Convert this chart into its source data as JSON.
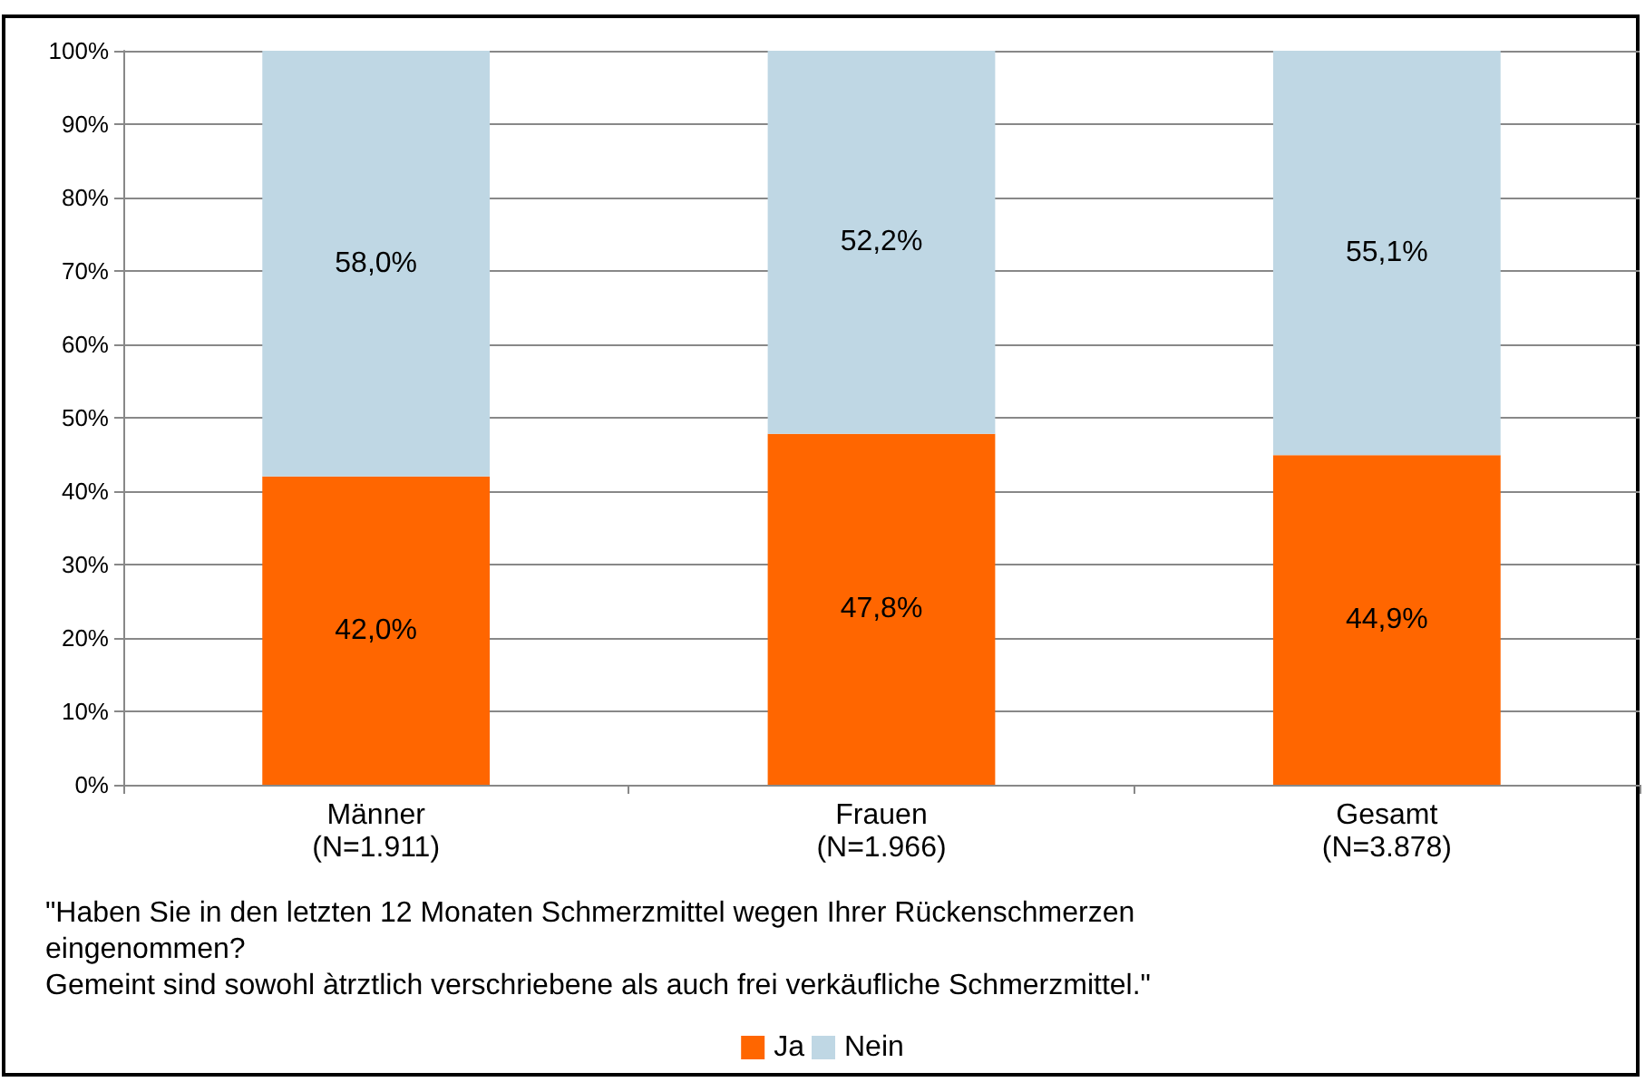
{
  "chart_data": {
    "type": "bar",
    "stacked": true,
    "categories": [
      "Männer\n(N=1.911)",
      "Frauen\n(N=1.966)",
      "Gesamt\n(N=3.878)"
    ],
    "series": [
      {
        "name": "Ja",
        "color": "#ff6600",
        "values": [
          42.0,
          47.8,
          44.9
        ],
        "value_labels": [
          "42,0%",
          "47,8%",
          "44,9%"
        ]
      },
      {
        "name": "Nein",
        "color": "#bfd7e4",
        "values": [
          58.0,
          52.2,
          55.1
        ],
        "value_labels": [
          "58,0%",
          "52,2%",
          "55,1%"
        ]
      }
    ],
    "ylim": [
      0,
      100
    ],
    "yticks": [
      {
        "value": 0,
        "label": "0%"
      },
      {
        "value": 10,
        "label": "10%"
      },
      {
        "value": 20,
        "label": "20%"
      },
      {
        "value": 30,
        "label": "30%"
      },
      {
        "value": 40,
        "label": "40%"
      },
      {
        "value": 50,
        "label": "50%"
      },
      {
        "value": 60,
        "label": "60%"
      },
      {
        "value": 70,
        "label": "70%"
      },
      {
        "value": 80,
        "label": "80%"
      },
      {
        "value": 90,
        "label": "90%"
      },
      {
        "value": 100,
        "label": "100%"
      }
    ],
    "xlabel": "\"Haben Sie in den letzten 12 Monaten Schmerzmittel wegen Ihrer Rückenschmerzen\neingenommen?\nGemeint sind sowohl àtrztlich verschriebene als auch frei verkäufliche Schmerzmittel.\"",
    "grid": "y",
    "legend": "bottom"
  }
}
